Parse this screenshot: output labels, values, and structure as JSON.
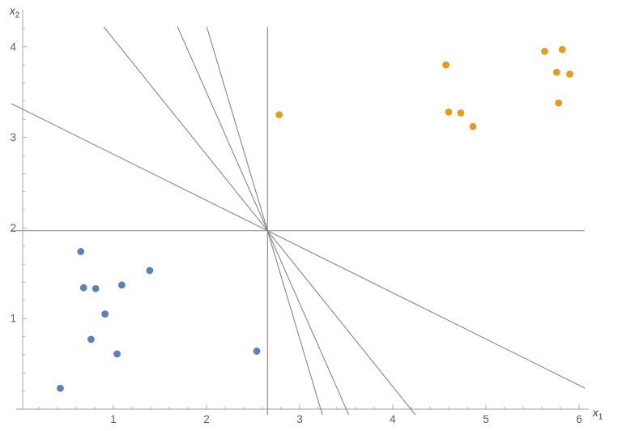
{
  "page": {
    "background": "#ffffff"
  },
  "chart_data": {
    "type": "scatter",
    "title": "",
    "xlabel": "x_1",
    "ylabel": "x_2",
    "grid": false,
    "legend": "none",
    "axis_color": "#a0a0a0",
    "tick_label_color": "#5f5f5f",
    "axis_label_color": "#3c3c3c",
    "x_axis": {
      "label_base": "x",
      "label_sub": "1",
      "tick_values": [
        1,
        2,
        3,
        4,
        5,
        6
      ],
      "tick_labels": [
        "1",
        "2",
        "3",
        "4",
        "5",
        "6"
      ],
      "minor_tick_step": 0.2,
      "range": [
        0,
        6.1
      ]
    },
    "y_axis": {
      "label_base": "x",
      "label_sub": "2",
      "tick_values": [
        1,
        2,
        3,
        4
      ],
      "tick_labels": [
        "1",
        "2",
        "3",
        "4"
      ],
      "minor_tick_step": 0.2,
      "range": [
        0,
        4.25
      ]
    },
    "series": [
      {
        "name": "class-a-blue",
        "color": "#5e81b5",
        "marker": "circle",
        "points": [
          [
            0.43,
            0.23
          ],
          [
            0.65,
            1.74
          ],
          [
            0.68,
            1.34
          ],
          [
            0.76,
            0.77
          ],
          [
            0.81,
            1.33
          ],
          [
            0.91,
            1.05
          ],
          [
            1.04,
            0.61
          ],
          [
            1.09,
            1.37
          ],
          [
            1.39,
            1.53
          ],
          [
            2.54,
            0.64
          ]
        ]
      },
      {
        "name": "class-b-orange",
        "color": "#e19c24",
        "marker": "circle",
        "points": [
          [
            2.78,
            3.25
          ],
          [
            4.57,
            3.8
          ],
          [
            4.6,
            3.28
          ],
          [
            4.73,
            3.27
          ],
          [
            4.86,
            3.12
          ],
          [
            5.63,
            3.95
          ],
          [
            5.82,
            3.97
          ],
          [
            5.76,
            3.72
          ],
          [
            5.9,
            3.7
          ],
          [
            5.78,
            3.38
          ]
        ]
      }
    ],
    "separator_lines": {
      "color": "#878787",
      "common_point": [
        2.655,
        1.97
      ],
      "lines": [
        {
          "orientation": "vertical"
        },
        {
          "orientation": "horizontal"
        },
        {
          "orientation": "slope",
          "m": -3.45
        },
        {
          "orientation": "slope",
          "m": -2.33
        },
        {
          "orientation": "slope",
          "m": -1.28
        },
        {
          "orientation": "slope",
          "m": -0.51
        }
      ]
    }
  }
}
